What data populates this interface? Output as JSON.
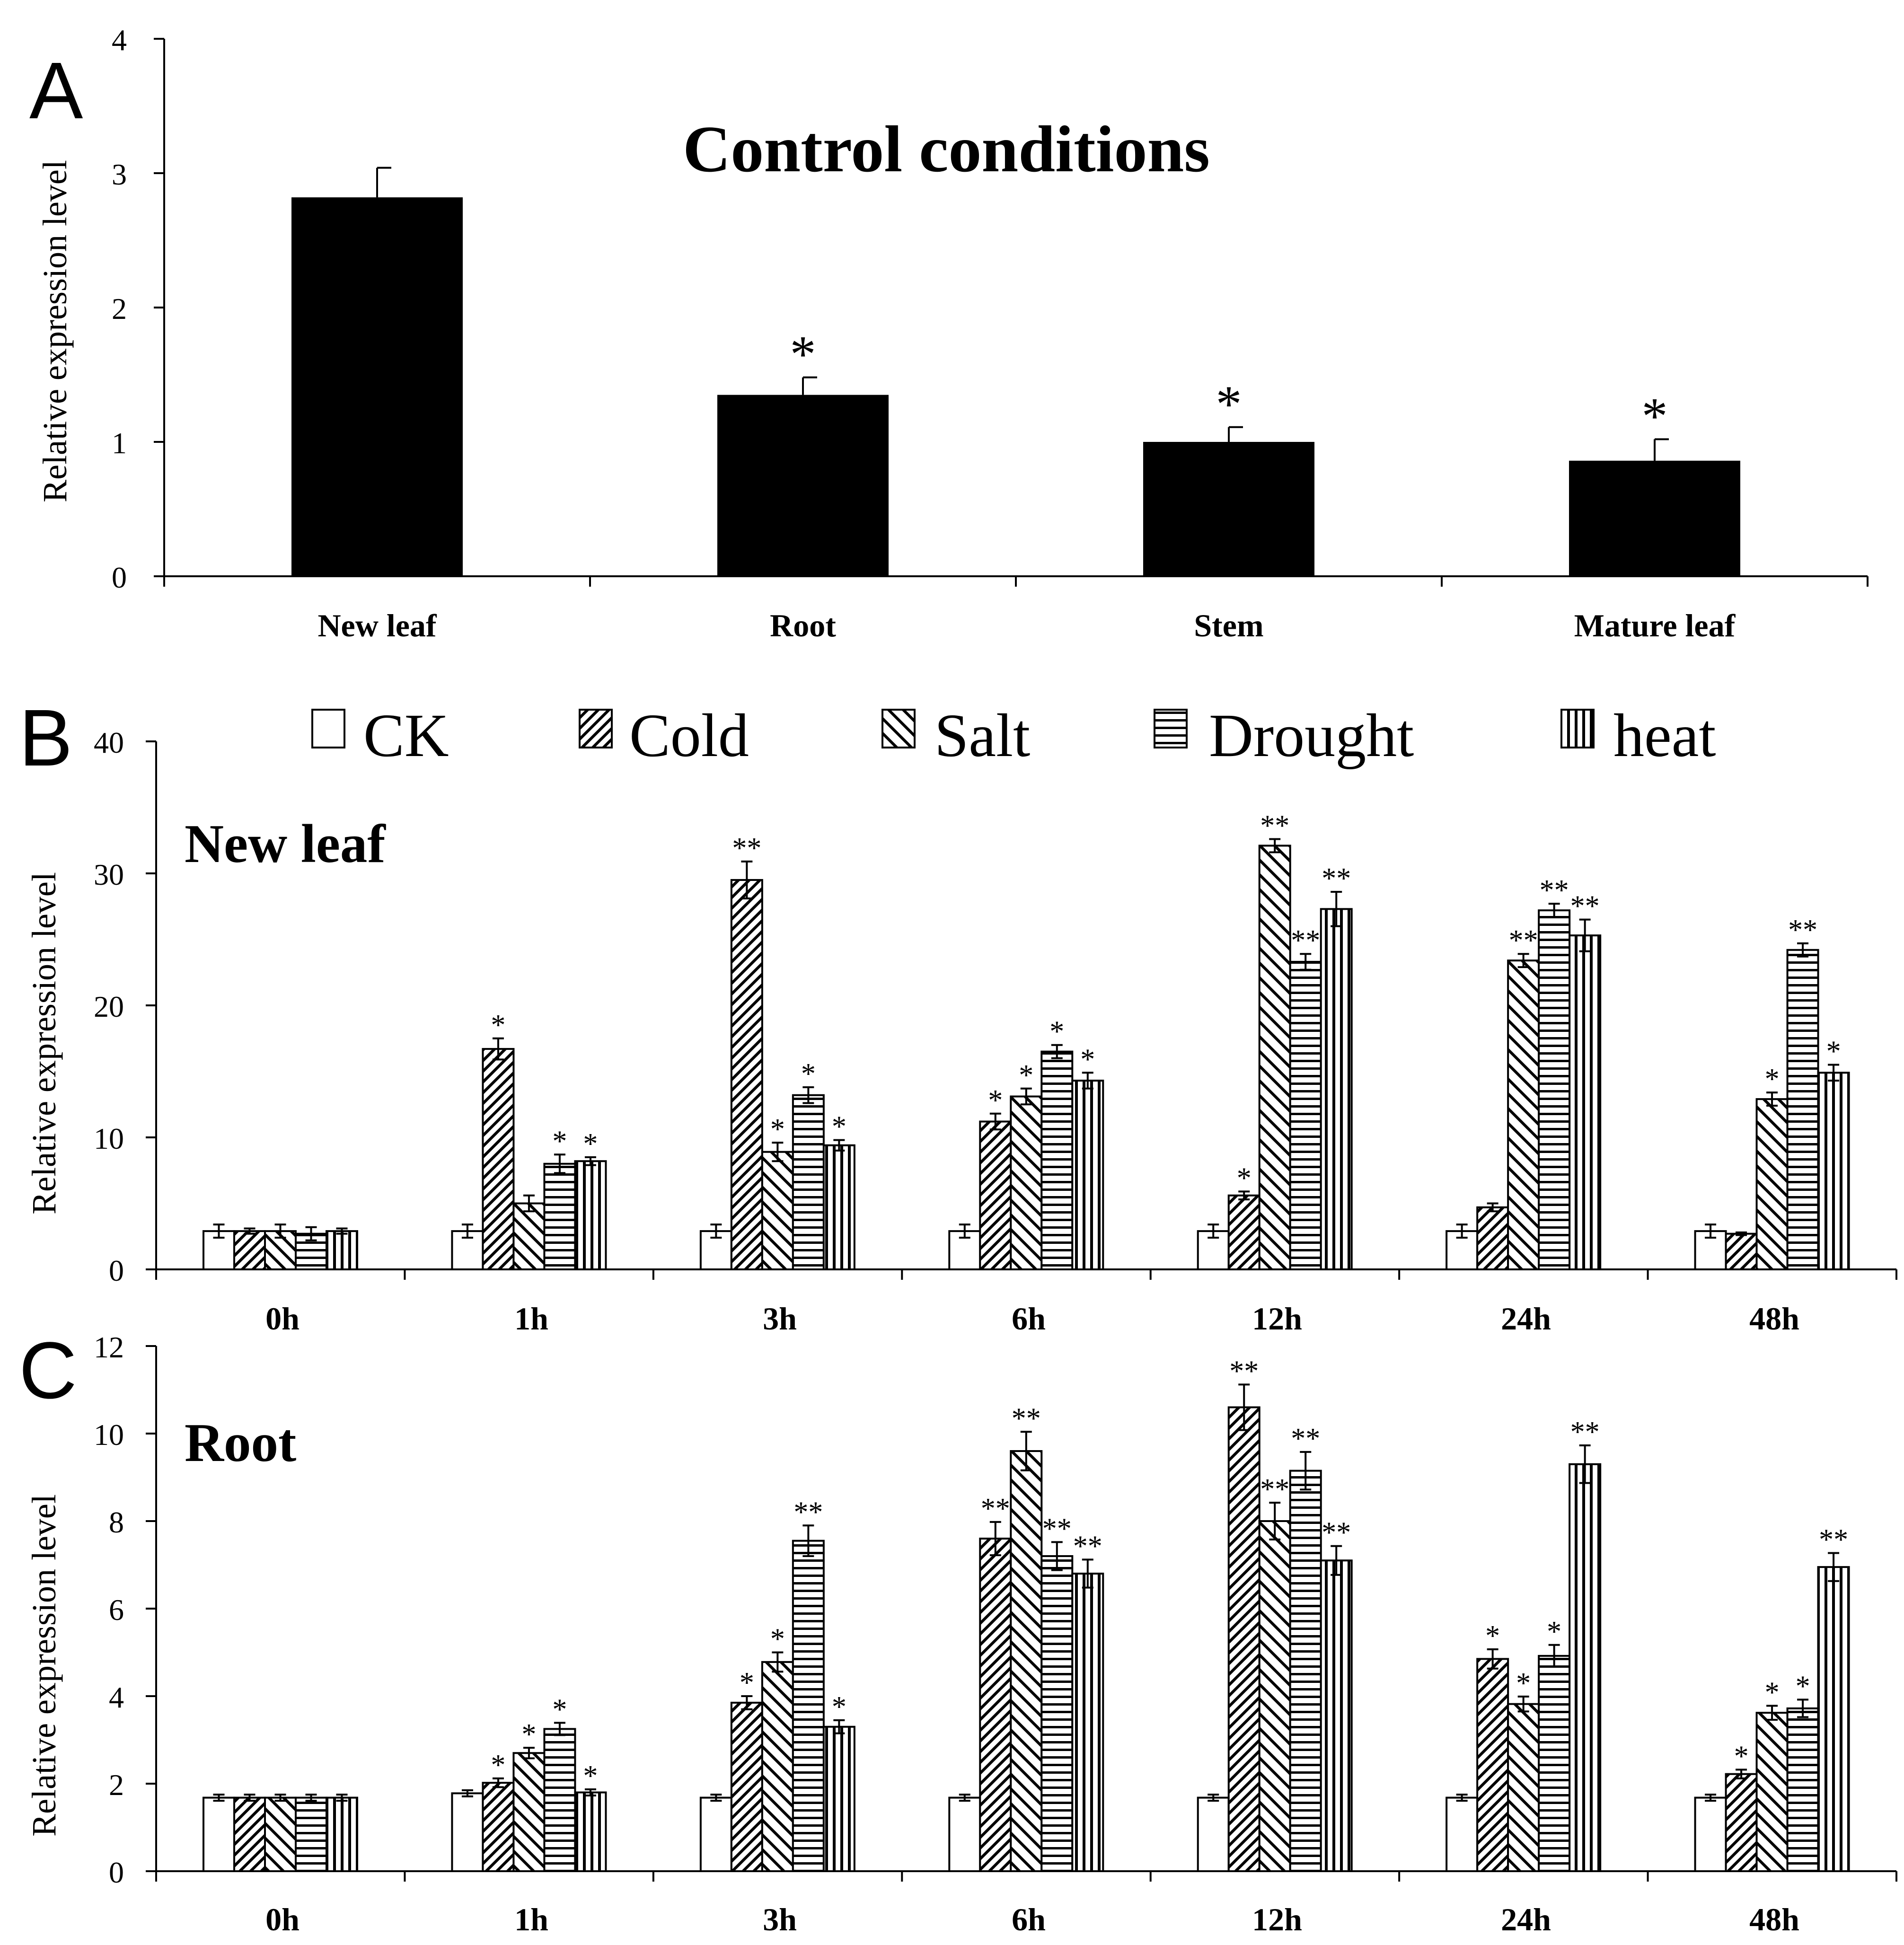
{
  "legend": {
    "items": [
      {
        "key": "CK",
        "label": "CK"
      },
      {
        "key": "Cold",
        "label": "Cold"
      },
      {
        "key": "Salt",
        "label": "Salt"
      },
      {
        "key": "Drought",
        "label": "Drought"
      },
      {
        "key": "heat",
        "label": "heat"
      }
    ]
  },
  "chart_data": [
    {
      "id": "A",
      "type": "bar",
      "panel_letter": "A",
      "title": "Control conditions",
      "xlabel": "",
      "ylabel": "Relative expression level",
      "ylim": [
        0,
        4
      ],
      "yticks": [
        "0",
        "1",
        "2",
        "3",
        "4"
      ],
      "categories": [
        "New leaf",
        "Root",
        "Stem",
        "Mature leaf"
      ],
      "values": [
        2.82,
        1.35,
        1.0,
        0.86
      ],
      "errors": [
        0.22,
        0.13,
        0.11,
        0.16
      ],
      "significance": [
        "",
        "*",
        "*",
        "*"
      ]
    },
    {
      "id": "B",
      "type": "bar",
      "panel_letter": "B",
      "title": "New leaf",
      "xlabel": "",
      "ylabel": "Relative expression level",
      "ylim": [
        0,
        40
      ],
      "yticks": [
        "0",
        "10",
        "20",
        "30",
        "40"
      ],
      "categories": [
        "0h",
        "1h",
        "3h",
        "6h",
        "12h",
        "24h",
        "48h"
      ],
      "series": [
        {
          "name": "CK",
          "values": [
            2.9,
            2.9,
            2.9,
            2.9,
            2.9,
            2.9,
            2.9
          ],
          "errors": [
            0.5,
            0.5,
            0.5,
            0.5,
            0.5,
            0.5,
            0.5
          ],
          "significance": [
            "",
            "",
            "",
            "",
            "",
            "",
            ""
          ]
        },
        {
          "name": "Cold",
          "values": [
            2.9,
            16.7,
            29.5,
            11.2,
            5.6,
            4.7,
            2.7
          ],
          "errors": [
            0.2,
            0.8,
            1.4,
            0.6,
            0.3,
            0.3,
            0.1
          ],
          "significance": [
            "",
            "*",
            "**",
            "*",
            "*",
            "",
            ""
          ]
        },
        {
          "name": "Salt",
          "values": [
            2.9,
            5.0,
            8.9,
            13.1,
            32.1,
            23.4,
            12.9
          ],
          "errors": [
            0.5,
            0.6,
            0.7,
            0.6,
            0.5,
            0.5,
            0.5
          ],
          "significance": [
            "",
            "",
            "*",
            "*",
            "**",
            "**",
            "*"
          ]
        },
        {
          "name": "Drought",
          "values": [
            2.7,
            8.0,
            13.2,
            16.5,
            23.3,
            27.2,
            24.2
          ],
          "errors": [
            0.5,
            0.7,
            0.6,
            0.5,
            0.6,
            0.5,
            0.5
          ],
          "significance": [
            "",
            "*",
            "*",
            "*",
            "**",
            "**",
            "**"
          ]
        },
        {
          "name": "heat",
          "values": [
            2.9,
            8.2,
            9.4,
            14.3,
            27.3,
            25.3,
            14.9
          ],
          "errors": [
            0.2,
            0.3,
            0.4,
            0.6,
            1.3,
            1.2,
            0.6
          ],
          "significance": [
            "",
            "*",
            "*",
            "*",
            "**",
            "**",
            "*"
          ]
        }
      ]
    },
    {
      "id": "C",
      "type": "bar",
      "panel_letter": "C",
      "title": "Root",
      "xlabel": "",
      "ylabel": "Relative expression level",
      "ylim": [
        0,
        12
      ],
      "yticks": [
        "0",
        "2",
        "4",
        "6",
        "8",
        "10",
        "12"
      ],
      "categories": [
        "0h",
        "1h",
        "3h",
        "6h",
        "12h",
        "24h",
        "48h"
      ],
      "series": [
        {
          "name": "CK",
          "values": [
            1.68,
            1.78,
            1.68,
            1.68,
            1.68,
            1.68,
            1.68
          ],
          "errors": [
            0.07,
            0.07,
            0.07,
            0.07,
            0.07,
            0.07,
            0.07
          ],
          "significance": [
            "",
            "",
            "",
            "",
            "",
            "",
            ""
          ]
        },
        {
          "name": "Cold",
          "values": [
            1.68,
            2.02,
            3.85,
            7.6,
            10.6,
            4.85,
            2.22
          ],
          "errors": [
            0.07,
            0.1,
            0.15,
            0.38,
            0.52,
            0.22,
            0.1
          ],
          "significance": [
            "",
            "*",
            "*",
            "**",
            "**",
            "*",
            "*"
          ]
        },
        {
          "name": "Salt",
          "values": [
            1.68,
            2.7,
            4.78,
            9.6,
            8.0,
            3.82,
            3.62
          ],
          "errors": [
            0.07,
            0.12,
            0.22,
            0.44,
            0.42,
            0.17,
            0.16
          ],
          "significance": [
            "",
            "*",
            "*",
            "**",
            "**",
            "*",
            "*"
          ]
        },
        {
          "name": "Drought",
          "values": [
            1.68,
            3.25,
            7.55,
            7.2,
            9.15,
            4.92,
            3.72
          ],
          "errors": [
            0.07,
            0.14,
            0.35,
            0.32,
            0.43,
            0.25,
            0.2
          ],
          "significance": [
            "",
            "*",
            "**",
            "**",
            "**",
            "*",
            "*"
          ]
        },
        {
          "name": "heat",
          "values": [
            1.68,
            1.8,
            3.3,
            6.8,
            7.1,
            9.3,
            6.95
          ],
          "errors": [
            0.07,
            0.07,
            0.15,
            0.32,
            0.33,
            0.43,
            0.32
          ],
          "significance": [
            "",
            "*",
            "*",
            "**",
            "**",
            "**",
            "**"
          ]
        }
      ]
    }
  ]
}
